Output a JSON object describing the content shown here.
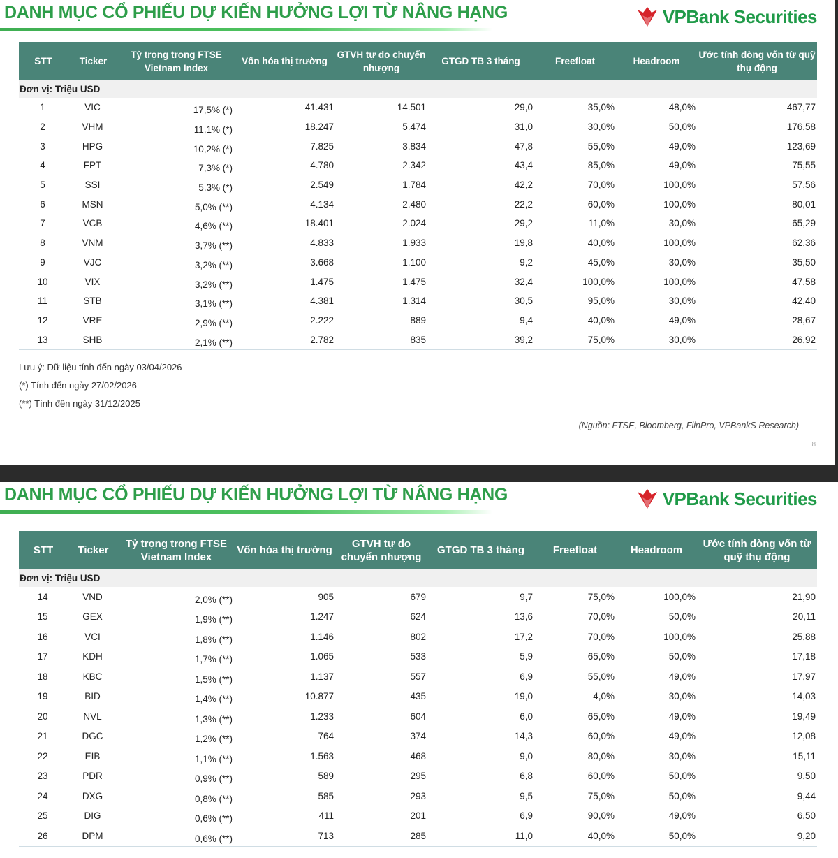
{
  "title": "DANH MỤC CỔ PHIẾU DỰ KIẾN HƯỞNG LỢI TỪ NÂNG HẠNG",
  "logo_text": "VPBank Securities",
  "brand_color": "#2e9e4a",
  "header_color": "#4a8478",
  "columns": [
    "STT",
    "Ticker",
    "Tỷ trọng trong FTSE Vietnam Index",
    "Vốn hóa thị trường",
    "GTVH tự do chuyển nhượng",
    "GTGD TB 3 tháng",
    "Freefloat",
    "Headroom",
    "Ước tính dòng vốn từ quỹ thụ động"
  ],
  "unit": "Đơn vị: Triệu USD",
  "page1_rows": [
    [
      "1",
      "VIC",
      "17,5% (*)",
      "41.431",
      "14.501",
      "29,0",
      "35,0%",
      "48,0%",
      "467,77"
    ],
    [
      "2",
      "VHM",
      "11,1% (*)",
      "18.247",
      "5.474",
      "31,0",
      "30,0%",
      "50,0%",
      "176,58"
    ],
    [
      "3",
      "HPG",
      "10,2% (*)",
      "7.825",
      "3.834",
      "47,8",
      "55,0%",
      "49,0%",
      "123,69"
    ],
    [
      "4",
      "FPT",
      "7,3% (*)",
      "4.780",
      "2.342",
      "43,4",
      "85,0%",
      "49,0%",
      "75,55"
    ],
    [
      "5",
      "SSI",
      "5,3% (*)",
      "2.549",
      "1.784",
      "42,2",
      "70,0%",
      "100,0%",
      "57,56"
    ],
    [
      "6",
      "MSN",
      "5,0% (**)",
      "4.134",
      "2.480",
      "22,2",
      "60,0%",
      "100,0%",
      "80,01"
    ],
    [
      "7",
      "VCB",
      "4,6% (**)",
      "18.401",
      "2.024",
      "29,2",
      "11,0%",
      "30,0%",
      "65,29"
    ],
    [
      "8",
      "VNM",
      "3,7% (**)",
      "4.833",
      "1.933",
      "19,8",
      "40,0%",
      "100,0%",
      "62,36"
    ],
    [
      "9",
      "VJC",
      "3,2% (**)",
      "3.668",
      "1.100",
      "9,2",
      "45,0%",
      "30,0%",
      "35,50"
    ],
    [
      "10",
      "VIX",
      "3,2% (**)",
      "1.475",
      "1.475",
      "32,4",
      "100,0%",
      "100,0%",
      "47,58"
    ],
    [
      "11",
      "STB",
      "3,1% (**)",
      "4.381",
      "1.314",
      "30,5",
      "95,0%",
      "30,0%",
      "42,40"
    ],
    [
      "12",
      "VRE",
      "2,9% (**)",
      "2.222",
      "889",
      "9,4",
      "40,0%",
      "49,0%",
      "28,67"
    ],
    [
      "13",
      "SHB",
      "2,1% (**)",
      "2.782",
      "835",
      "39,2",
      "75,0%",
      "30,0%",
      "26,92"
    ]
  ],
  "page2_rows": [
    [
      "14",
      "VND",
      "2,0% (**)",
      "905",
      "679",
      "9,7",
      "75,0%",
      "100,0%",
      "21,90"
    ],
    [
      "15",
      "GEX",
      "1,9% (**)",
      "1.247",
      "624",
      "13,6",
      "70,0%",
      "50,0%",
      "20,11"
    ],
    [
      "16",
      "VCI",
      "1,8% (**)",
      "1.146",
      "802",
      "17,2",
      "70,0%",
      "100,0%",
      "25,88"
    ],
    [
      "17",
      "KDH",
      "1,7% (**)",
      "1.065",
      "533",
      "5,9",
      "65,0%",
      "50,0%",
      "17,18"
    ],
    [
      "18",
      "KBC",
      "1,5% (**)",
      "1.137",
      "557",
      "6,9",
      "55,0%",
      "49,0%",
      "17,97"
    ],
    [
      "19",
      "BID",
      "1,4% (**)",
      "10.877",
      "435",
      "19,0",
      "4,0%",
      "30,0%",
      "14,03"
    ],
    [
      "20",
      "NVL",
      "1,3% (**)",
      "1.233",
      "604",
      "6,0",
      "65,0%",
      "49,0%",
      "19,49"
    ],
    [
      "21",
      "DGC",
      "1,2% (**)",
      "764",
      "374",
      "14,3",
      "60,0%",
      "49,0%",
      "12,08"
    ],
    [
      "22",
      "EIB",
      "1,1% (**)",
      "1.563",
      "468",
      "9,0",
      "80,0%",
      "30,0%",
      "15,11"
    ],
    [
      "23",
      "PDR",
      "0,9% (**)",
      "589",
      "295",
      "6,8",
      "60,0%",
      "50,0%",
      "9,50"
    ],
    [
      "24",
      "DXG",
      "0,8% (**)",
      "585",
      "293",
      "9,5",
      "75,0%",
      "50,0%",
      "9,44"
    ],
    [
      "25",
      "DIG",
      "0,6% (**)",
      "411",
      "201",
      "6,9",
      "90,0%",
      "49,0%",
      "6,50"
    ],
    [
      "26",
      "DPM",
      "0,6% (**)",
      "713",
      "285",
      "11,0",
      "40,0%",
      "50,0%",
      "9,20"
    ]
  ],
  "notes": [
    "Lưu ý: Dữ liệu tính đến ngày 03/04/2026",
    "(*) Tính đến ngày 27/02/2026",
    "(**) Tính đến ngày 31/12/2025"
  ],
  "source": "(Nguồn:  FTSE, Bloomberg, FiinPro, VPBankS Research)",
  "page_number": "8"
}
